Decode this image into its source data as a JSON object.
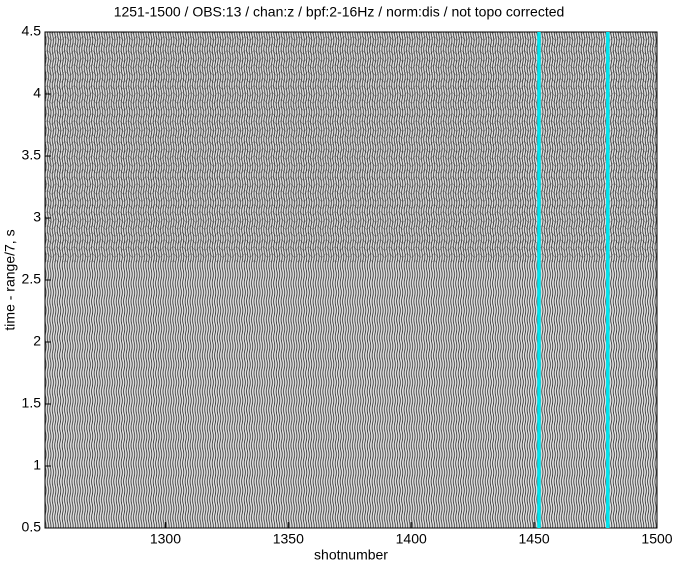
{
  "chart_data": {
    "type": "seismic",
    "title": "1251-1500 / OBS:13 / chan:z / bpf:2-16Hz / norm:dis / not topo corrected",
    "x_label": "shotnumber",
    "y_label": "time - range/7, s",
    "xlim": [
      1251,
      1500
    ],
    "xticks": [
      1300,
      1350,
      1400,
      1450,
      1500
    ],
    "ylim": [
      0.5,
      4.5
    ],
    "yticks": [
      0.5,
      1,
      1.5,
      2,
      2.5,
      3,
      3.5,
      4,
      4.5
    ],
    "highlighted_traces": {
      "color": "#00e5ee",
      "x": [
        1452,
        1480
      ]
    }
  }
}
